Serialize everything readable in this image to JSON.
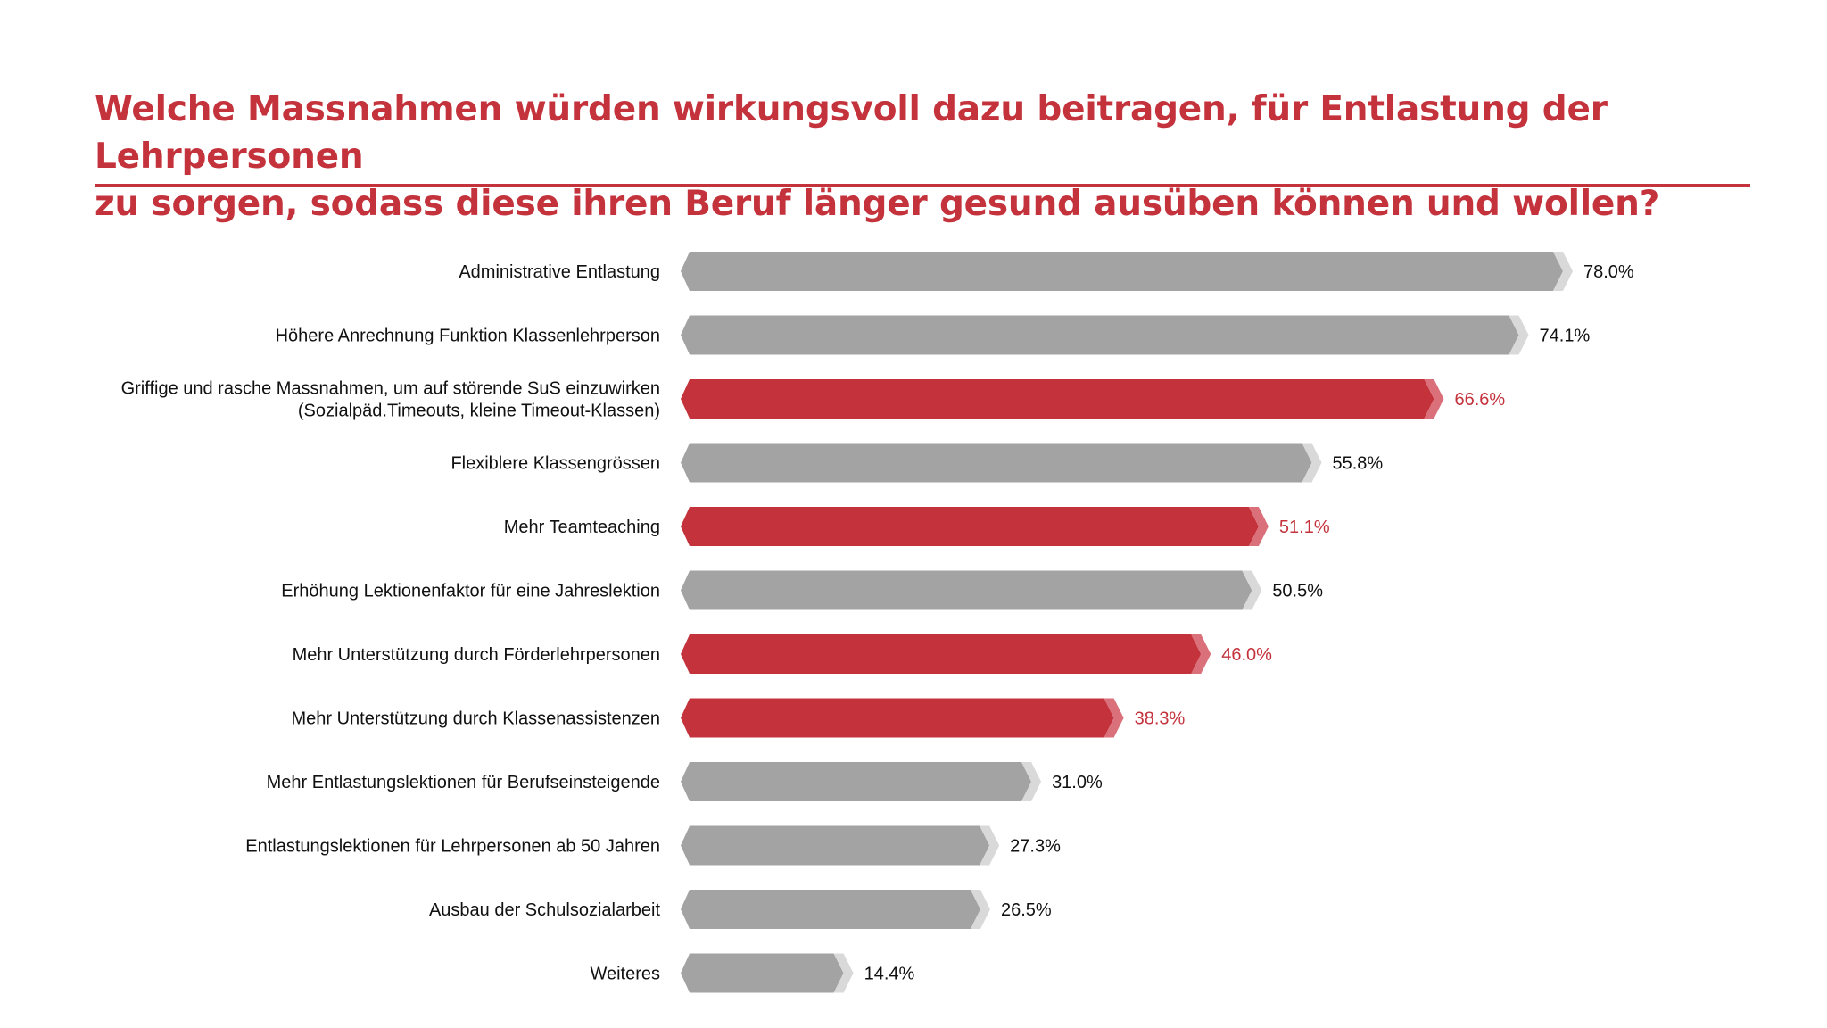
{
  "title": "Welche Massnahmen würden wirkungsvoll dazu beitragen, für Entlastung der Lehrpersonen\nzu sorgen, sodass diese ihren Beruf länger gesund ausüben können und wollen?",
  "colors": {
    "accent": "#c4323c",
    "bar_default": "#a3a3a3",
    "bar_highlight": "#c4323c",
    "tip_default": "#d9d9d9",
    "tip_highlight": "#d9707a",
    "text": "#111111"
  },
  "chart_data": {
    "type": "bar",
    "orientation": "horizontal",
    "xlim": [
      0,
      78
    ],
    "unit": "%",
    "categories": [
      "Administrative Entlastung",
      "Höhere Anrechnung Funktion Klassenlehrperson",
      "Griffige und rasche Massnahmen, um auf störende SuS einzuwirken\n(Sozialpäd.Timeouts, kleine Timeout-Klassen)",
      "Flexiblere Klassengrössen",
      "Mehr Teamteaching",
      "Erhöhung Lektionenfaktor für eine Jahreslektion",
      "Mehr Unterstützung durch Förderlehrpersonen",
      "Mehr Unterstützung durch Klassenassistenzen",
      "Mehr Entlastungslektionen für Berufseinsteigende",
      "Entlastungslektionen für Lehrpersonen ab 50 Jahren",
      "Ausbau der Schulsozialarbeit",
      "Weiteres"
    ],
    "values": [
      78.0,
      74.1,
      66.6,
      55.8,
      51.1,
      50.5,
      46.0,
      38.3,
      31.0,
      27.3,
      26.5,
      14.4
    ],
    "value_labels": [
      "78.0%",
      "74.1%",
      "66.6%",
      "55.8%",
      "51.1%",
      "50.5%",
      "46.0%",
      "38.3%",
      "31.0%",
      "27.3%",
      "26.5%",
      "14.4%"
    ],
    "highlighted": [
      false,
      false,
      true,
      false,
      true,
      false,
      true,
      true,
      false,
      false,
      false,
      false
    ]
  }
}
